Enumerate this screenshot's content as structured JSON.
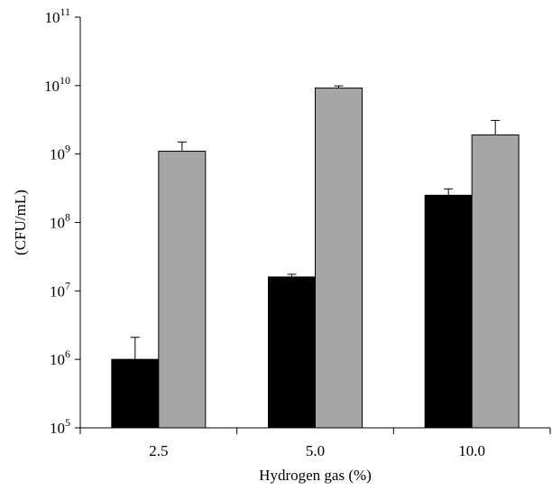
{
  "chart_data": {
    "type": "bar",
    "title": "",
    "xlabel": "Hydrogen gas (%)",
    "ylabel": "(CFU/mL)",
    "yscale": "log",
    "ylim": [
      100000,
      100000000000
    ],
    "y_ticks": [
      {
        "base": "10",
        "exp": "5",
        "value": 100000
      },
      {
        "base": "10",
        "exp": "6",
        "value": 1000000
      },
      {
        "base": "10",
        "exp": "7",
        "value": 10000000
      },
      {
        "base": "10",
        "exp": "8",
        "value": 100000000
      },
      {
        "base": "10",
        "exp": "9",
        "value": 1000000000
      },
      {
        "base": "10",
        "exp": "10",
        "value": 10000000000
      },
      {
        "base": "10",
        "exp": "11",
        "value": 100000000000
      }
    ],
    "categories": [
      "2.5",
      "5.0",
      "10.0"
    ],
    "series": [
      {
        "color": "#000000",
        "values": [
          1000000,
          16000000,
          250000000
        ],
        "error_upper": [
          2100000,
          17500000,
          310000000
        ]
      },
      {
        "color": "#a6a6a6",
        "values": [
          1100000000,
          9200000000,
          1900000000
        ],
        "error_upper": [
          1500000000,
          9900000000,
          3100000000
        ]
      }
    ],
    "legend": "none",
    "grid": false
  }
}
